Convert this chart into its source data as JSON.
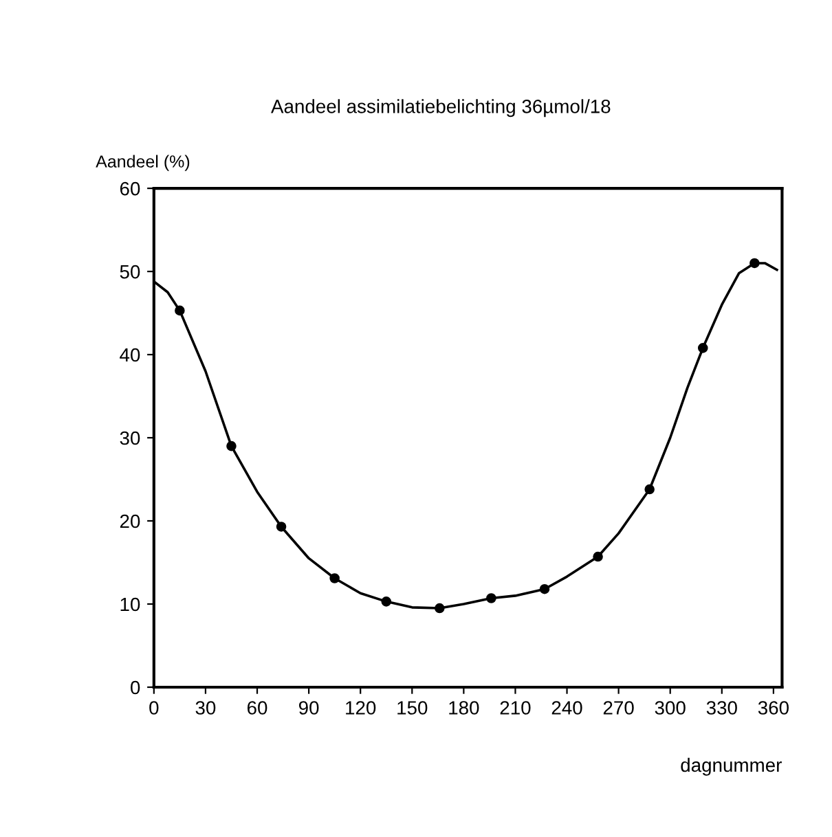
{
  "chart_data": {
    "type": "line",
    "title": "Aandeel assimilatiebelichting 36µmol/18",
    "ylabel": "Aandeel (%)",
    "xlabel": "dagnummer",
    "xlim": [
      0,
      365
    ],
    "xticks": [
      0,
      30,
      60,
      90,
      120,
      150,
      180,
      210,
      240,
      270,
      300,
      330,
      360
    ],
    "ylim": [
      0,
      60
    ],
    "yticks": [
      0,
      10,
      20,
      30,
      40,
      50,
      60
    ],
    "grid": false,
    "legend": false,
    "series": [
      {
        "color": "#000000",
        "marker": "none",
        "line_style": "solid",
        "x": [
          0,
          8,
          15,
          30,
          45,
          60,
          74,
          90,
          105,
          120,
          135,
          150,
          166,
          180,
          196,
          210,
          227,
          240,
          258,
          270,
          288,
          300,
          310,
          319,
          330,
          340,
          349,
          355,
          362
        ],
        "values": [
          48.8,
          47.5,
          45.3,
          38,
          29,
          23.5,
          19.3,
          15.5,
          13.1,
          11.3,
          10.3,
          9.6,
          9.5,
          10.0,
          10.7,
          11.0,
          11.8,
          13.3,
          15.7,
          18.5,
          23.8,
          30,
          36,
          40.8,
          46,
          49.8,
          51,
          51,
          50.2
        ]
      },
      {
        "type": "scatter",
        "color": "#000000",
        "marker": "circle",
        "x": [
          15,
          45,
          74,
          105,
          135,
          166,
          196,
          227,
          258,
          288,
          319,
          349
        ],
        "values": [
          45.3,
          29,
          19.3,
          13.1,
          10.3,
          9.5,
          10.7,
          11.8,
          15.7,
          23.8,
          40.8,
          51
        ]
      }
    ]
  }
}
